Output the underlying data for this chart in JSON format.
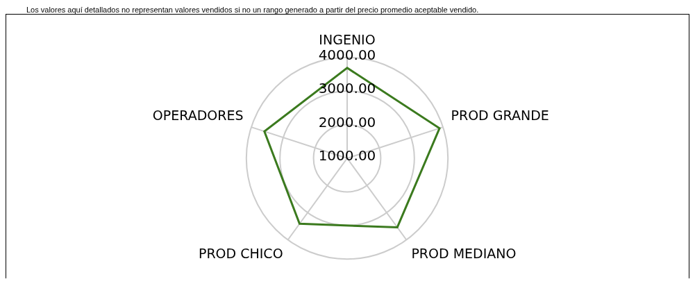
{
  "chart_data": {
    "type": "radar",
    "annotations": [
      "Los valores aquí detallados no representan valores vendidos si no un rango generado a partir del precio promedio aceptable vendido."
    ],
    "categories": [
      "INGENIO",
      "PROD GRANDE",
      "PROD MEDIANO",
      "PROD CHICO",
      "OPERADORES"
    ],
    "series": [
      {
        "color": "#3b7a1e",
        "values": [
          3690,
          3890,
          3540,
          3410,
          3590
        ]
      }
    ],
    "ylim": [
      1000,
      4000
    ],
    "yticks": [
      {
        "value": 1000,
        "label": "1000.00"
      },
      {
        "value": 2000,
        "label": "2000.00"
      },
      {
        "value": 3000,
        "label": "3000.00"
      },
      {
        "value": 4000,
        "label": "4000.00"
      }
    ],
    "grid": true,
    "legend": false,
    "marker": "none"
  }
}
